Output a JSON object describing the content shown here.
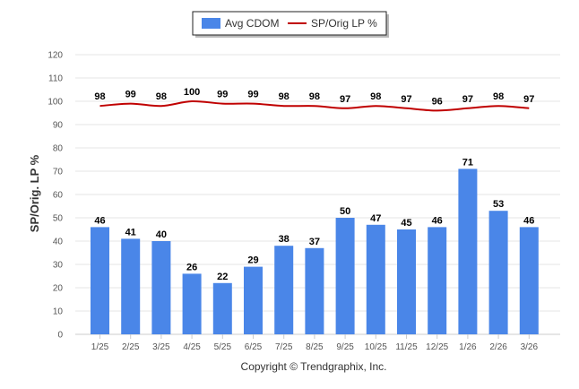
{
  "chart_data": {
    "type": "bar",
    "title": "",
    "xlabel": "",
    "ylabel": "SP/Orig. LP %",
    "ylim": [
      0,
      120
    ],
    "yticks": [
      0,
      10,
      20,
      30,
      40,
      50,
      60,
      70,
      80,
      90,
      100,
      110,
      120
    ],
    "grid": true,
    "legend_position": "top-center",
    "categories": [
      "1/25",
      "2/25",
      "3/25",
      "4/25",
      "5/25",
      "6/25",
      "7/25",
      "8/25",
      "9/25",
      "10/25",
      "11/25",
      "12/25",
      "1/26",
      "2/26",
      "3/26"
    ],
    "series": [
      {
        "name": "Avg CDOM",
        "type": "bar",
        "color": "#4a86e8",
        "values": [
          46,
          41,
          40,
          26,
          22,
          29,
          38,
          37,
          50,
          47,
          45,
          46,
          71,
          53,
          46
        ]
      },
      {
        "name": "SP/Orig LP %",
        "type": "line",
        "color": "#c00000",
        "values": [
          98,
          99,
          98,
          100,
          99,
          99,
          98,
          98,
          97,
          98,
          97,
          96,
          97,
          98,
          97
        ]
      }
    ]
  },
  "footer": {
    "copyright": "Copyright © Trendgraphix, Inc."
  }
}
